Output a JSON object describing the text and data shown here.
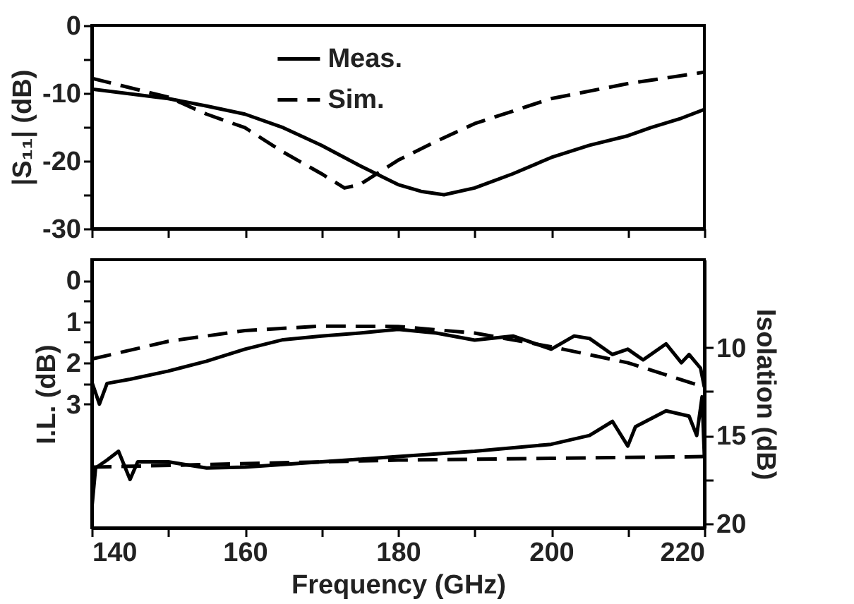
{
  "chart_data": [
    {
      "type": "line",
      "ylabel": "|S₁₁| (dB)",
      "xlim": [
        140,
        220
      ],
      "xticks": [
        140,
        {
          "value": 150,
          "label": null
        },
        160,
        {
          "value": 170,
          "label": null
        },
        180,
        {
          "value": 190,
          "label": null
        },
        200,
        {
          "value": 210,
          "label": null
        },
        220
      ],
      "ylim": [
        -30,
        0
      ],
      "yticks": [
        -30,
        {
          "value": -25,
          "label": null
        },
        -20,
        {
          "value": -15,
          "label": null
        },
        -10,
        {
          "value": -5,
          "label": null
        },
        0
      ],
      "tick_labels": "y",
      "legend": "top",
      "grid": false,
      "series": [
        {
          "name": "Meas.",
          "color": "#000000",
          "line_style": "solid",
          "x": [
            140,
            150,
            155,
            160,
            165,
            170,
            175,
            180,
            183,
            186,
            190,
            195,
            200,
            205,
            210,
            213,
            217,
            220
          ],
          "values": [
            -9.4,
            -10.8,
            -11.9,
            -13.1,
            -15.1,
            -17.7,
            -20.7,
            -23.5,
            -24.5,
            -25,
            -24,
            -21.9,
            -19.5,
            -17.7,
            -16.3,
            -15.1,
            -13.7,
            -12.4
          ]
        },
        {
          "name": "Sim.",
          "color": "#000000",
          "line_style": "dashed",
          "x": [
            140,
            150,
            155,
            160,
            165,
            170,
            173,
            175,
            180,
            185,
            190,
            200,
            210,
            220
          ],
          "values": [
            -7.8,
            -10.6,
            -13.1,
            -15.1,
            -18.7,
            -21.9,
            -24,
            -23.5,
            -19.9,
            -17.1,
            -14.5,
            -10.8,
            -8.6,
            -6.9
          ]
        }
      ]
    },
    {
      "type": "line",
      "xlabel": "Frequency (GHz)",
      "ylabel": "I.L. (dB)",
      "y2label": "Isolation (dB)",
      "xlim": [
        140,
        220
      ],
      "xticks": [
        140,
        {
          "value": 150,
          "label": null
        },
        160,
        {
          "value": 170,
          "label": null
        },
        180,
        {
          "value": 190,
          "label": null
        },
        200,
        {
          "value": 210,
          "label": null
        },
        220
      ],
      "ylim": [
        6,
        -0.5
      ],
      "yticks": [
        0,
        {
          "value": 0.5,
          "label": null
        },
        1,
        {
          "value": 1.5,
          "label": null
        },
        2,
        {
          "value": 2.5,
          "label": null
        },
        3
      ],
      "y2lim": [
        20.25,
        5
      ],
      "y2ticks": [
        10,
        {
          "value": 12.5,
          "label": null
        },
        15,
        {
          "value": 17.5,
          "label": null
        },
        20
      ],
      "grid": false,
      "series": [
        {
          "color": "#000000",
          "line_style": "solid",
          "x": [
            140,
            141,
            142,
            145,
            150,
            155,
            160,
            165,
            170,
            175,
            180,
            185,
            190,
            195,
            200,
            203,
            205,
            208,
            210,
            212,
            215,
            217,
            218,
            219.5,
            220
          ],
          "values": [
            2.46,
            3.0,
            2.5,
            2.4,
            2.2,
            1.96,
            1.67,
            1.44,
            1.35,
            1.28,
            1.19,
            1.28,
            1.45,
            1.35,
            1.67,
            1.35,
            1.41,
            1.8,
            1.67,
            1.93,
            1.54,
            2.0,
            1.8,
            2.13,
            2.59
          ]
        },
        {
          "color": "#000000",
          "line_style": "dashed",
          "x": [
            140,
            150,
            160,
            170,
            180,
            190,
            200,
            210,
            220
          ],
          "values": [
            1.91,
            1.48,
            1.22,
            1.11,
            1.12,
            1.28,
            1.61,
            2.0,
            2.59
          ]
        },
        {
          "color": "#000000",
          "line_style": "solid",
          "axis": "y2",
          "x": [
            140,
            140.5,
            142,
            143.5,
            145,
            146,
            150,
            155,
            160,
            170,
            180,
            190,
            200,
            205,
            208,
            210,
            211,
            215,
            218,
            219,
            219.7,
            220
          ],
          "values": [
            19.2,
            16.85,
            16.4,
            15.9,
            17.5,
            16.5,
            16.5,
            16.85,
            16.8,
            16.5,
            16.2,
            15.9,
            15.5,
            15.0,
            14.2,
            15.6,
            14.5,
            13.6,
            13.9,
            15.0,
            12.8,
            16.2
          ]
        },
        {
          "color": "#000000",
          "line_style": "dashed",
          "axis": "y2",
          "x": [
            140,
            180,
            200,
            220
          ],
          "values": [
            16.8,
            16.4,
            16.3,
            16.2
          ]
        }
      ]
    }
  ]
}
